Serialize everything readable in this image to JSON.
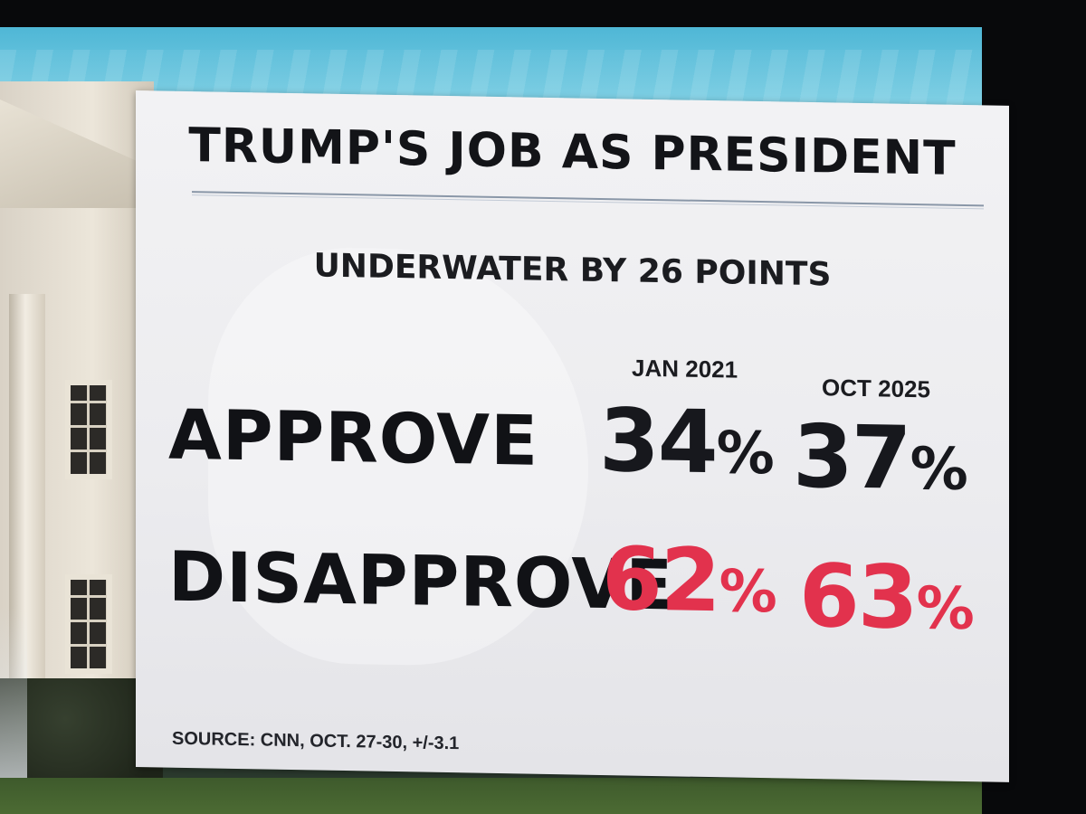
{
  "graphic": {
    "title": "TRUMP'S JOB AS PRESIDENT",
    "subtitle": "UNDERWATER BY 26 POINTS",
    "columns": [
      "JAN 2021",
      "OCT 2025"
    ],
    "rows": [
      {
        "label": "APPROVE",
        "values": [
          "34",
          "37"
        ],
        "unit": "%",
        "color": "#17181d"
      },
      {
        "label": "DISAPPROVE",
        "values": [
          "62",
          "63"
        ],
        "unit": "%",
        "color": "#e2324d"
      }
    ],
    "source": "SOURCE: CNN, OCT. 27-30, +/-3.1"
  },
  "colors": {
    "accent_red": "#e2324d",
    "text_dark": "#17181d",
    "card_background": "#efeff2",
    "sky_blue": "#4fb7d6"
  }
}
